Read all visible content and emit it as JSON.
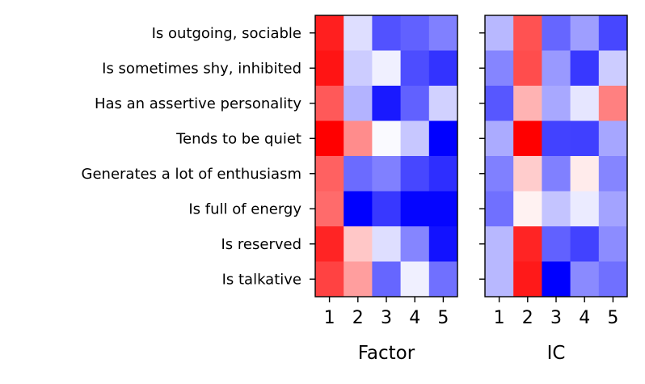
{
  "chart_data": [
    {
      "type": "heatmap",
      "xlabel": "Factor",
      "ylabel": "",
      "rows": [
        "Is outgoing, sociable",
        "Is sometimes shy, inhibited",
        "Has an assertive personality",
        "Tends to be quiet",
        "Generates a lot of enthusiasm",
        "Is full of energy",
        "Is reserved",
        "Is talkative"
      ],
      "columns": [
        "1",
        "2",
        "3",
        "4",
        "5"
      ],
      "colormap": "bwr",
      "values": [
        [
          0.88,
          -0.13,
          -0.68,
          -0.62,
          -0.5
        ],
        [
          0.92,
          -0.2,
          -0.06,
          -0.7,
          -0.8
        ],
        [
          0.65,
          -0.3,
          -0.9,
          -0.62,
          -0.18
        ],
        [
          1.0,
          0.45,
          -0.02,
          -0.22,
          -1.0
        ],
        [
          0.62,
          -0.58,
          -0.5,
          -0.72,
          -0.82
        ],
        [
          0.58,
          -1.0,
          -0.78,
          -0.98,
          -0.98
        ],
        [
          0.86,
          0.22,
          -0.13,
          -0.48,
          -0.93
        ],
        [
          0.74,
          0.38,
          -0.6,
          -0.06,
          -0.56
        ]
      ]
    },
    {
      "type": "heatmap",
      "xlabel": "IC",
      "ylabel": "",
      "rows": [
        "Is outgoing, sociable",
        "Is sometimes shy, inhibited",
        "Has an assertive personality",
        "Tends to be quiet",
        "Generates a lot of enthusiasm",
        "Is full of energy",
        "Is reserved",
        "Is talkative"
      ],
      "columns": [
        "1",
        "2",
        "3",
        "4",
        "5"
      ],
      "colormap": "bwr",
      "values": [
        [
          -0.28,
          0.68,
          -0.6,
          -0.38,
          -0.72
        ],
        [
          -0.48,
          0.7,
          -0.4,
          -0.78,
          -0.2
        ],
        [
          -0.66,
          0.3,
          -0.34,
          -0.1,
          0.5
        ],
        [
          -0.33,
          1.0,
          -0.74,
          -0.75,
          -0.35
        ],
        [
          -0.5,
          0.2,
          -0.5,
          0.08,
          -0.48
        ],
        [
          -0.56,
          0.05,
          -0.23,
          -0.08,
          -0.36
        ],
        [
          -0.28,
          0.86,
          -0.62,
          -0.74,
          -0.45
        ],
        [
          -0.28,
          0.9,
          -1.0,
          -0.46,
          -0.56
        ]
      ]
    }
  ]
}
